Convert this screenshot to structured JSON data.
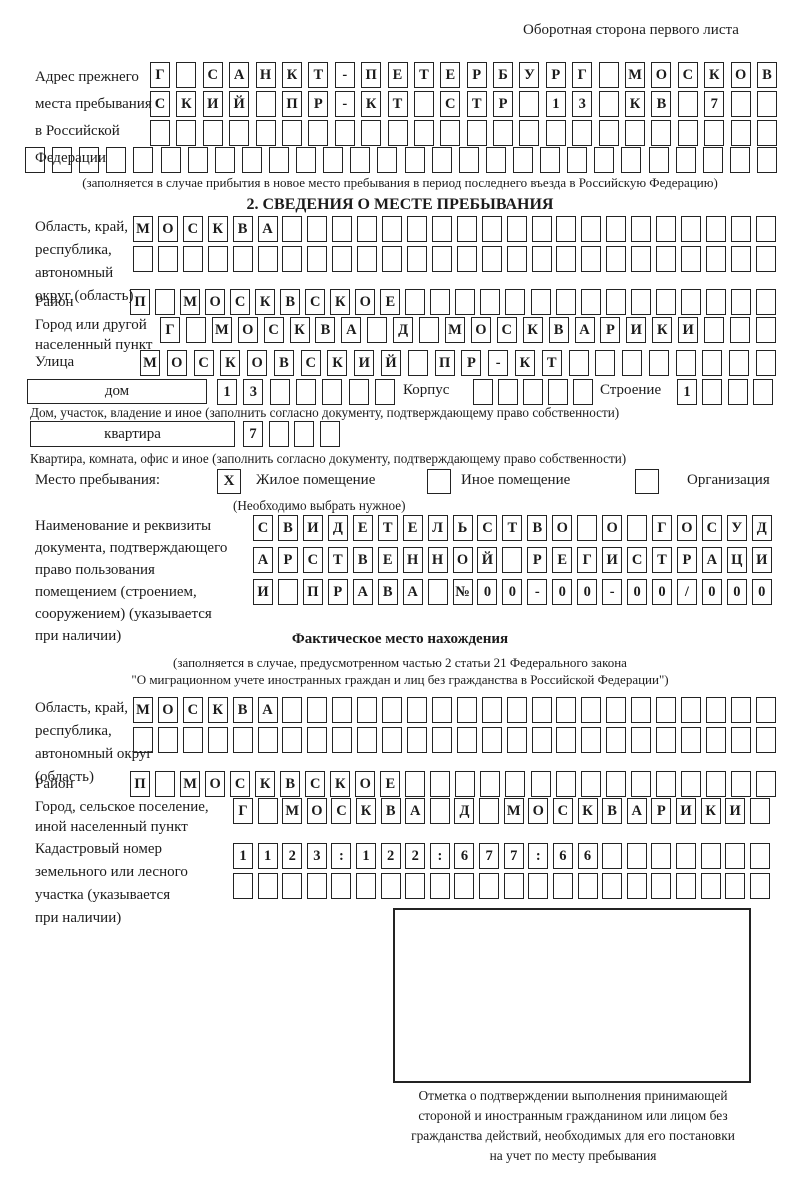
{
  "page": {
    "header_note": "Оборотная сторона первого листа"
  },
  "prev_address": {
    "label": [
      "Адрес прежнего",
      "места пребывания",
      "в Российской",
      "Федерации"
    ],
    "rows": {
      "r1": "Г_САНКТ-ПЕТЕРБУРГ_МОСКОВ",
      "r2": "СКИЙ_ПР-КТ_СТР_13_КВ_7__",
      "r3": "________________________",
      "r4": "____________________________"
    },
    "note": "(заполняется в случае прибытия в новое место пребывания в период последнего въезда в Российскую Федерацию)"
  },
  "section2": {
    "title": "2. СВЕДЕНИЯ О МЕСТЕ ПРЕБЫВАНИЯ",
    "oblast": {
      "label": [
        "Область, край,",
        "республика,",
        "автономный",
        "округ (область)"
      ],
      "r1": "МОСКВА____________________",
      "r2": "__________________________"
    },
    "rayon": {
      "label": "Район",
      "r1": "П_МОСКВСКОЕ_______________"
    },
    "gorod": {
      "label": [
        "Город или другой",
        "населенный пункт"
      ],
      "r1": "Г_МОСКВА_Д_МОСКВАРИКИ___"
    },
    "ulitsa": {
      "label": "Улица",
      "r1": "МОСКОВСКИЙ_ПР-КТ________"
    },
    "dom": {
      "box": "дом",
      "cells": "13_____",
      "korpus_label": "Корпус",
      "korpus_cells": "_____",
      "stroenie_label": "Строение",
      "stroenie_cells": "1___",
      "note": "Дом, участок, владение и иное (заполнить согласно документу, подтверждающему право собственности)"
    },
    "kvartira": {
      "box": "квартира",
      "cells": "7___",
      "note": "Квартира, комната, офис и иное (заполнить согласно документу, подтверждающему право собственности)"
    },
    "mesto": {
      "label": "Место пребывания:",
      "check1": "X",
      "opt1": "Жилое помещение",
      "check2": "",
      "opt2": "Иное помещение",
      "check3": "",
      "opt3": "Организация",
      "note": "(Необходимо выбрать нужное)"
    },
    "doc": {
      "label": [
        "Наименование и реквизиты",
        "документа, подтверждающего",
        "право пользования",
        "помещением (строением,",
        "сооружением) (указывается",
        "при наличии)"
      ],
      "r1": "СВИДЕТЕЛЬСТВО_О_ГОСУД",
      "r2": "АРСТВЕННОЙ_РЕГИСТРАЦИ",
      "r3": "И_ПРАВА_№00-00-00/000"
    }
  },
  "fact": {
    "title": "Фактическое место нахождения",
    "note1": "(заполняется в случае, предусмотренном частью 2 статьи 21 Федерального закона",
    "note2": "\"О миграционном учете иностранных граждан и лиц без гражданства в Российской Федерации\")",
    "oblast": {
      "label": [
        "Область, край,",
        "республика,",
        "автономный округ",
        "(область)"
      ],
      "r1": "МОСКВА____________________",
      "r2": "__________________________"
    },
    "rayon": {
      "label": "Район",
      "r1": "П_МОСКВСКОЕ_______________"
    },
    "gorod": {
      "label": [
        "Город, сельское поселение,",
        "иной населенный пункт"
      ],
      "r1": "Г_МОСКВА_Д_МОСКВАРИКИ_"
    },
    "kadastr": {
      "label": [
        "Кадастровый номер",
        "земельного или лесного",
        "участка (указывается",
        "при наличии)"
      ],
      "r1": "1123:122:677:66_______",
      "r2": "______________________"
    },
    "stamp_note": [
      "Отметка о подтверждении выполнения принимающей",
      "стороной и иностранным гражданином или лицом без",
      "гражданства действий, необходимых для его постановки",
      "на учет по месту пребывания"
    ]
  }
}
